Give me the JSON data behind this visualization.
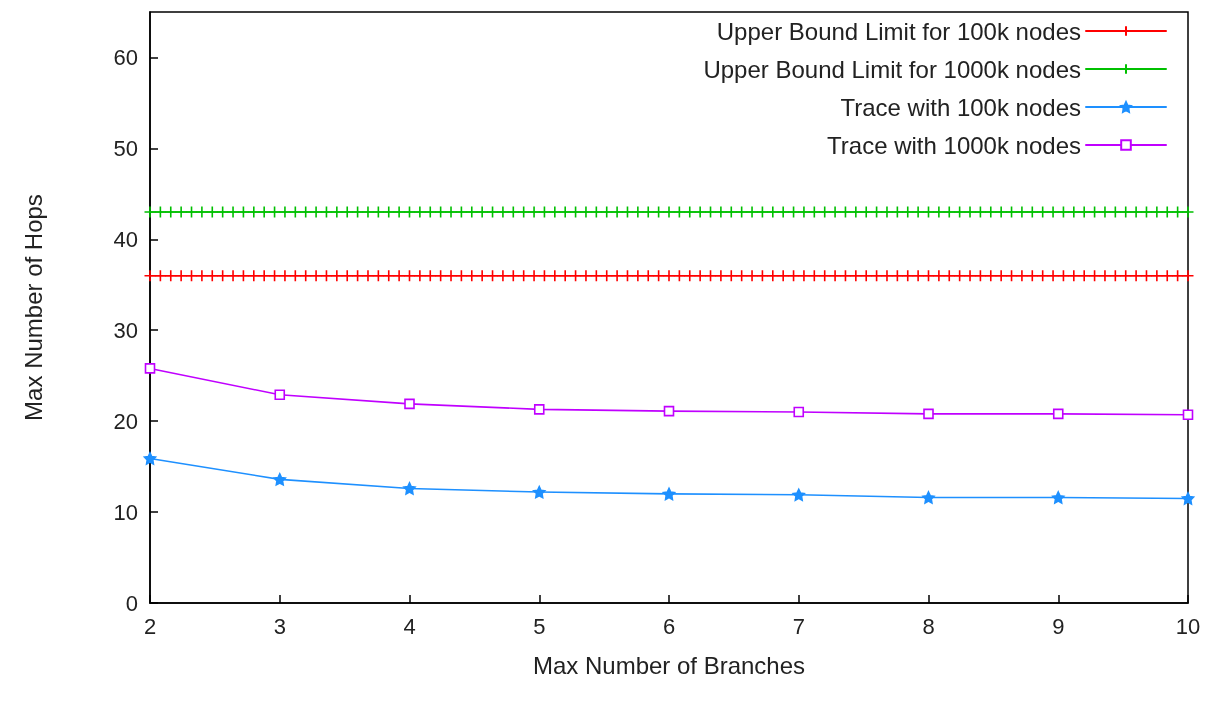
{
  "chart_data": {
    "type": "line",
    "xlabel": "Max Number of Branches",
    "ylabel": "Max Number of Hops",
    "xlim": [
      2,
      10
    ],
    "xticks": [
      2,
      3,
      4,
      5,
      6,
      7,
      8,
      9,
      10
    ],
    "ylim": [
      0,
      65
    ],
    "yticks": [
      0,
      10,
      20,
      30,
      40,
      50,
      60
    ],
    "grid": false,
    "legend": "top right",
    "line_style": "solid",
    "series": [
      {
        "name": "Upper Bound Limit for 100k nodes",
        "color": "#ff0000",
        "marker": "cross",
        "x": [
          2,
          2.08,
          2.16,
          2.24,
          2.32,
          2.4,
          2.48,
          2.56,
          2.64,
          2.72,
          2.8,
          2.88,
          2.96,
          3.04,
          3.12,
          3.2,
          3.28,
          3.36,
          3.44,
          3.52,
          3.6,
          3.68,
          3.76,
          3.84,
          3.92,
          4,
          4.08,
          4.16,
          4.24,
          4.32,
          4.4,
          4.48,
          4.56,
          4.64,
          4.72,
          4.8,
          4.88,
          4.96,
          5.04,
          5.12,
          5.2,
          5.28,
          5.36,
          5.44,
          5.52,
          5.6,
          5.68,
          5.76,
          5.84,
          5.92,
          6,
          6.08,
          6.16,
          6.24,
          6.32,
          6.4,
          6.48,
          6.56,
          6.64,
          6.72,
          6.8,
          6.88,
          6.96,
          7.04,
          7.12,
          7.2,
          7.28,
          7.36,
          7.44,
          7.52,
          7.6,
          7.68,
          7.76,
          7.84,
          7.92,
          8,
          8.08,
          8.16,
          8.24,
          8.32,
          8.4,
          8.48,
          8.56,
          8.64,
          8.72,
          8.8,
          8.88,
          8.96,
          9.04,
          9.12,
          9.2,
          9.28,
          9.36,
          9.44,
          9.52,
          9.6,
          9.68,
          9.76,
          9.84,
          9.92,
          10
        ],
        "values": [
          36,
          36,
          36,
          36,
          36,
          36,
          36,
          36,
          36,
          36,
          36,
          36,
          36,
          36,
          36,
          36,
          36,
          36,
          36,
          36,
          36,
          36,
          36,
          36,
          36,
          36,
          36,
          36,
          36,
          36,
          36,
          36,
          36,
          36,
          36,
          36,
          36,
          36,
          36,
          36,
          36,
          36,
          36,
          36,
          36,
          36,
          36,
          36,
          36,
          36,
          36,
          36,
          36,
          36,
          36,
          36,
          36,
          36,
          36,
          36,
          36,
          36,
          36,
          36,
          36,
          36,
          36,
          36,
          36,
          36,
          36,
          36,
          36,
          36,
          36,
          36,
          36,
          36,
          36,
          36,
          36,
          36,
          36,
          36,
          36,
          36,
          36,
          36,
          36,
          36,
          36,
          36,
          36,
          36,
          36,
          36,
          36,
          36,
          36,
          36,
          36
        ]
      },
      {
        "name": "Upper Bound Limit for 1000k nodes",
        "color": "#00c000",
        "marker": "cross",
        "x": [
          2,
          2.08,
          2.16,
          2.24,
          2.32,
          2.4,
          2.48,
          2.56,
          2.64,
          2.72,
          2.8,
          2.88,
          2.96,
          3.04,
          3.12,
          3.2,
          3.28,
          3.36,
          3.44,
          3.52,
          3.6,
          3.68,
          3.76,
          3.84,
          3.92,
          4,
          4.08,
          4.16,
          4.24,
          4.32,
          4.4,
          4.48,
          4.56,
          4.64,
          4.72,
          4.8,
          4.88,
          4.96,
          5.04,
          5.12,
          5.2,
          5.28,
          5.36,
          5.44,
          5.52,
          5.6,
          5.68,
          5.76,
          5.84,
          5.92,
          6,
          6.08,
          6.16,
          6.24,
          6.32,
          6.4,
          6.48,
          6.56,
          6.64,
          6.72,
          6.8,
          6.88,
          6.96,
          7.04,
          7.12,
          7.2,
          7.28,
          7.36,
          7.44,
          7.52,
          7.6,
          7.68,
          7.76,
          7.84,
          7.92,
          8,
          8.08,
          8.16,
          8.24,
          8.32,
          8.4,
          8.48,
          8.56,
          8.64,
          8.72,
          8.8,
          8.88,
          8.96,
          9.04,
          9.12,
          9.2,
          9.28,
          9.36,
          9.44,
          9.52,
          9.6,
          9.68,
          9.76,
          9.84,
          9.92,
          10
        ],
        "values": [
          43,
          43,
          43,
          43,
          43,
          43,
          43,
          43,
          43,
          43,
          43,
          43,
          43,
          43,
          43,
          43,
          43,
          43,
          43,
          43,
          43,
          43,
          43,
          43,
          43,
          43,
          43,
          43,
          43,
          43,
          43,
          43,
          43,
          43,
          43,
          43,
          43,
          43,
          43,
          43,
          43,
          43,
          43,
          43,
          43,
          43,
          43,
          43,
          43,
          43,
          43,
          43,
          43,
          43,
          43,
          43,
          43,
          43,
          43,
          43,
          43,
          43,
          43,
          43,
          43,
          43,
          43,
          43,
          43,
          43,
          43,
          43,
          43,
          43,
          43,
          43,
          43,
          43,
          43,
          43,
          43,
          43,
          43,
          43,
          43,
          43,
          43,
          43,
          43,
          43,
          43,
          43,
          43,
          43,
          43,
          43,
          43,
          43,
          43,
          43,
          43
        ]
      },
      {
        "name": "Trace with 100k nodes",
        "color": "#1e90ff",
        "marker": "star",
        "x": [
          2,
          3,
          4,
          5,
          6,
          7,
          8,
          9,
          10
        ],
        "values": [
          15.9,
          13.6,
          12.6,
          12.2,
          12.0,
          11.9,
          11.6,
          11.6,
          11.5
        ]
      },
      {
        "name": "Trace with 1000k nodes",
        "color": "#c000ff",
        "marker": "square",
        "x": [
          2,
          3,
          4,
          5,
          6,
          7,
          8,
          9,
          10
        ],
        "values": [
          25.8,
          22.9,
          21.9,
          21.3,
          21.1,
          21.0,
          20.8,
          20.8,
          20.7
        ]
      }
    ]
  }
}
